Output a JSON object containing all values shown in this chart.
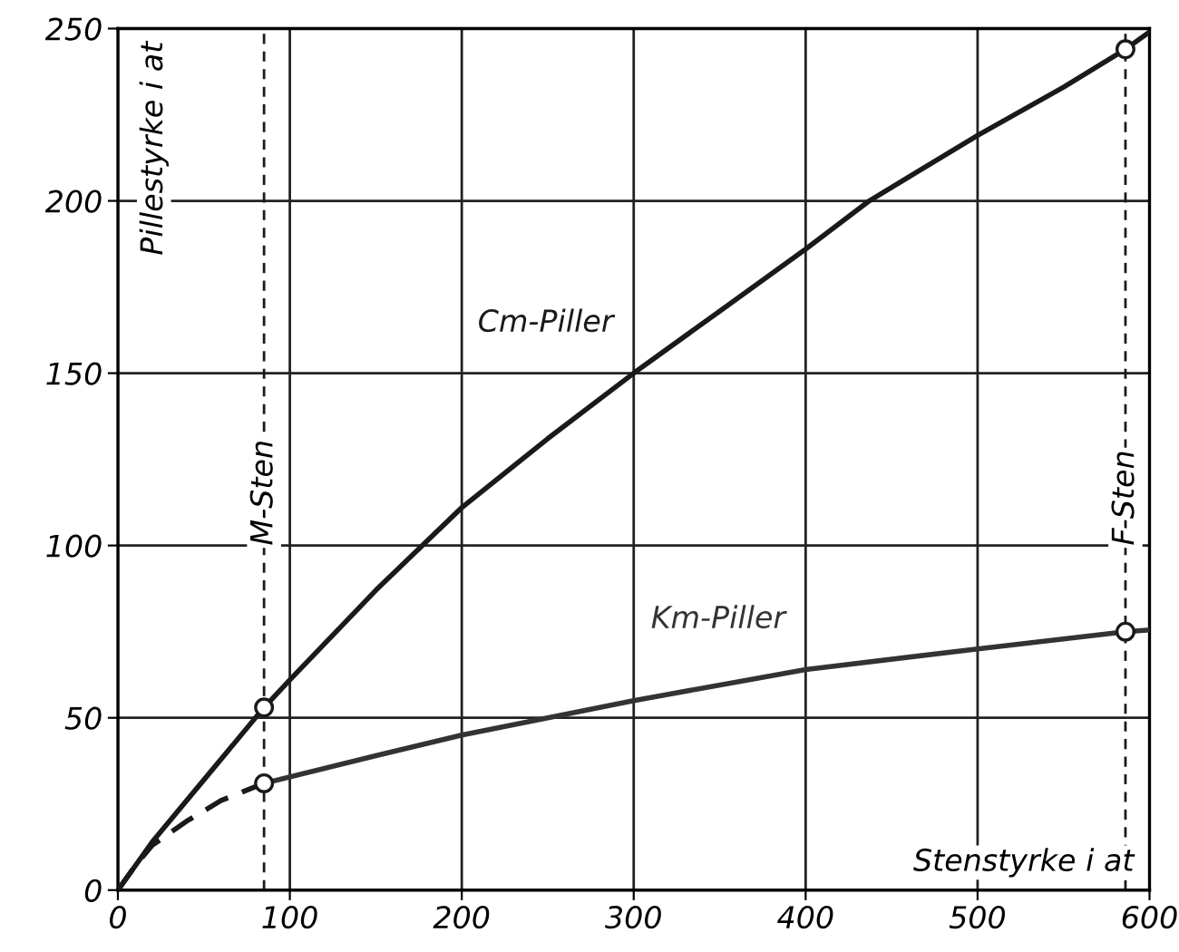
{
  "chart_data": {
    "type": "line",
    "xlabel": "Stenstyrke i at",
    "ylabel": "Pillestyrke i at",
    "xlim": [
      0,
      600
    ],
    "ylim": [
      0,
      250
    ],
    "xticks": [
      0,
      100,
      200,
      300,
      400,
      500,
      600
    ],
    "yticks": [
      0,
      50,
      100,
      150,
      200,
      250
    ],
    "grid": true,
    "legend": false,
    "line_style": "solid",
    "marker": "none",
    "series": [
      {
        "name": "Cm-Piller",
        "color": "#1a1a1a",
        "x": [
          0,
          20,
          50,
          85,
          100,
          150,
          177,
          200,
          250,
          300,
          350,
          400,
          437,
          500,
          550,
          586,
          600
        ],
        "values": [
          0,
          14,
          32,
          53,
          61,
          87,
          100,
          111,
          131,
          150,
          168,
          186,
          200,
          219,
          233,
          244,
          249
        ]
      },
      {
        "name": "Km-Piller",
        "color": "#333333",
        "x": [
          85,
          150,
          200,
          300,
          400,
          500,
          586,
          600
        ],
        "values": [
          31,
          39,
          45,
          55,
          64,
          70,
          75,
          75.5
        ]
      },
      {
        "color": "#1a1a1a",
        "line_style": "dashed",
        "x": [
          0,
          10,
          20,
          40,
          60,
          85
        ],
        "values": [
          0,
          7,
          13,
          20,
          26,
          31
        ]
      },
      {
        "type": "scatter",
        "marker": "circle",
        "color": "#1a1a1a",
        "x": [
          85,
          85,
          586,
          586
        ],
        "values": [
          53,
          31,
          244,
          75
        ]
      }
    ],
    "ref_lines": [
      {
        "axis": "x",
        "value": 85,
        "label": "M-Sten",
        "color": "#1a1a1a",
        "line_style": "dashed"
      },
      {
        "axis": "x",
        "value": 586,
        "label": "F-Sten",
        "color": "#1a1a1a",
        "line_style": "dashed"
      }
    ]
  }
}
